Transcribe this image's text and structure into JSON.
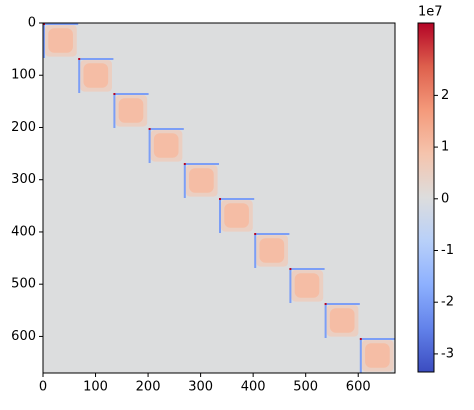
{
  "chart_data": {
    "type": "heatmap",
    "colormap": "coolwarm",
    "xlim": [
      0,
      670
    ],
    "ylim": [
      670,
      0
    ],
    "xticks": [
      0,
      100,
      200,
      300,
      400,
      500,
      600
    ],
    "yticks": [
      0,
      100,
      200,
      300,
      400,
      500,
      600
    ],
    "background_value": 0,
    "blocks": [
      0,
      67,
      134,
      201,
      268,
      335,
      402,
      469,
      536,
      603
    ],
    "block_size": 67,
    "core_value": 1.0,
    "edge_value": -2.0,
    "corner_value": 3.4,
    "clim": [
      -3.35,
      3.4
    ],
    "cbar_ticks": [
      -3,
      -2,
      -1,
      0,
      1,
      2
    ],
    "cbar_offset": "1e7"
  }
}
